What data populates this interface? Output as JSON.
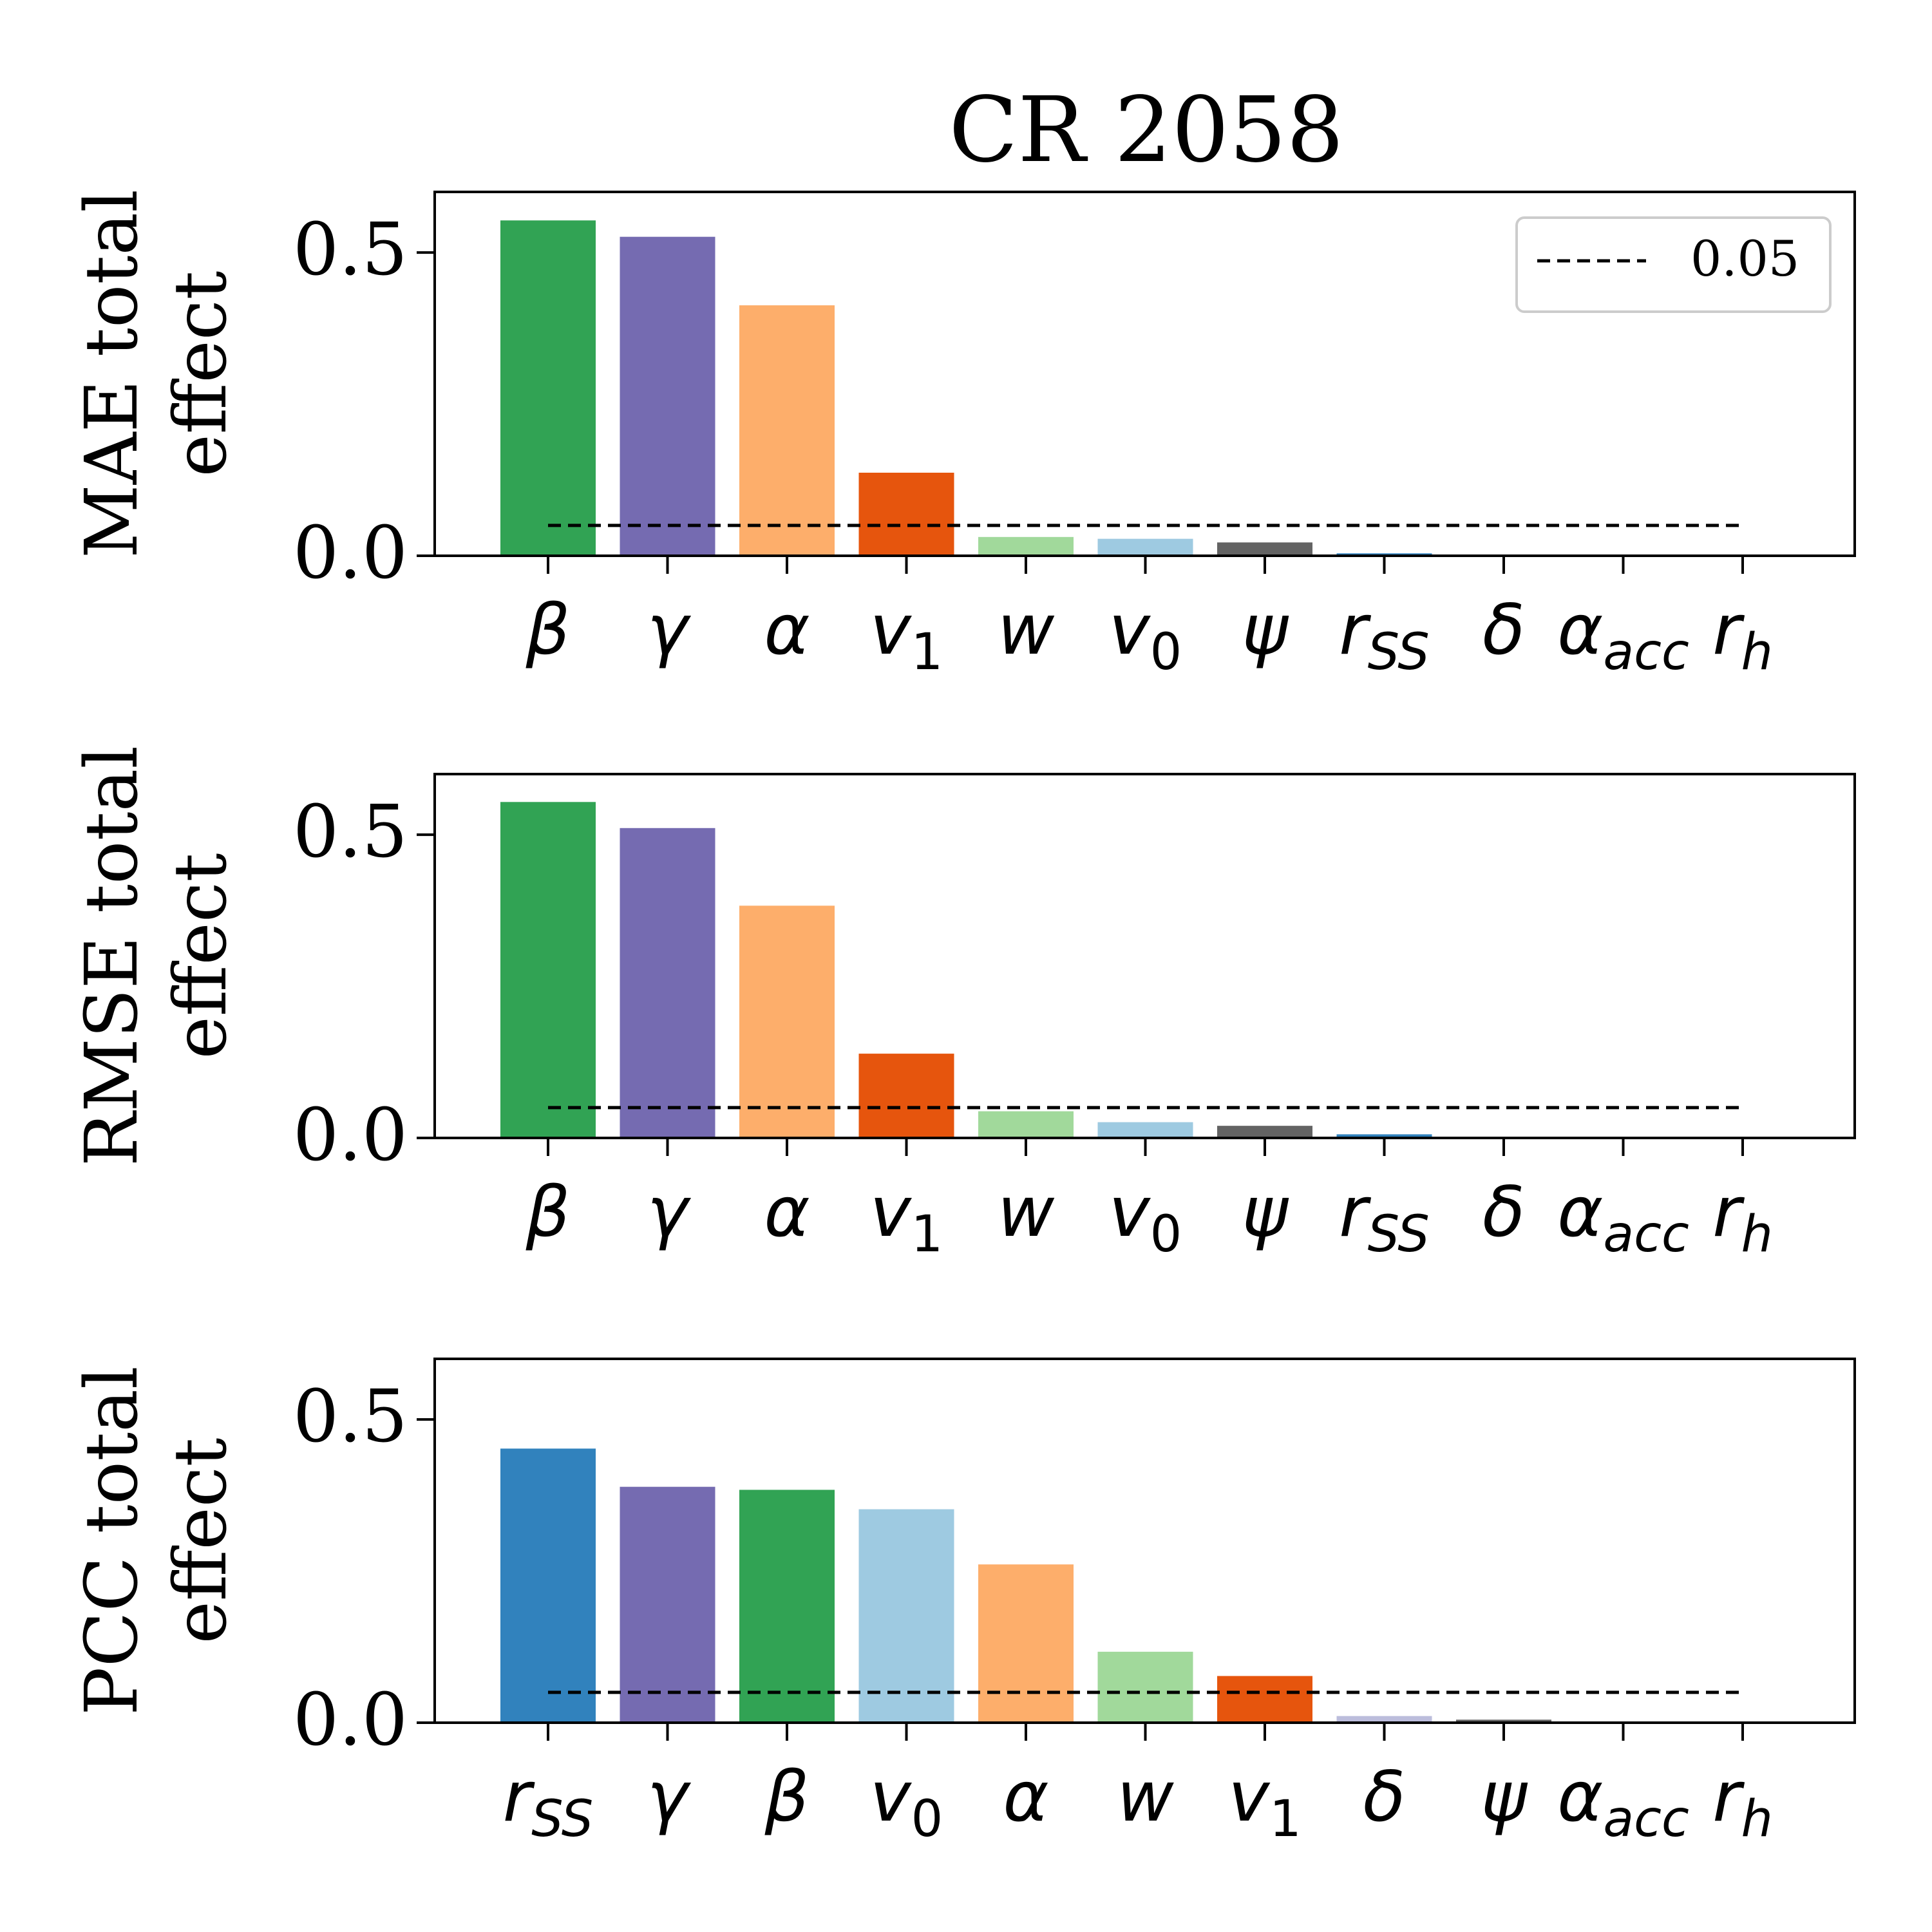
{
  "figure_title": "CR 2058",
  "reference": {
    "value": 0.05,
    "label": "0.05"
  },
  "chart_data": [
    {
      "type": "bar",
      "ylabel_line1": "MAE total",
      "ylabel_line2": "effect",
      "ylim": [
        0,
        0.6
      ],
      "yticks": [
        "0.0",
        "0.5"
      ],
      "legend_placement": "top-right",
      "categories": [
        {
          "base": "β"
        },
        {
          "base": "γ"
        },
        {
          "base": "α"
        },
        {
          "base": "v",
          "sub": "1"
        },
        {
          "base": "w"
        },
        {
          "base": "v",
          "sub": "0"
        },
        {
          "base": "ψ"
        },
        {
          "base": "r",
          "sub": "SS"
        },
        {
          "base": "δ"
        },
        {
          "base": "α",
          "sub": "acc"
        },
        {
          "base": "r",
          "sub": "h"
        }
      ],
      "values": [
        0.553,
        0.526,
        0.413,
        0.137,
        0.031,
        0.028,
        0.022,
        0.004,
        0.0,
        0.0,
        0.0
      ],
      "colors": [
        "#31a354",
        "#756bb1",
        "#fdae6b",
        "#e6550d",
        "#a1d99b",
        "#9ecae1",
        "#636363",
        "#3182bd",
        "#bcbddc",
        "#ffffff",
        "#ffffff"
      ]
    },
    {
      "type": "bar",
      "ylabel_line1": "RMSE total",
      "ylabel_line2": "effect",
      "ylim": [
        0,
        0.6
      ],
      "yticks": [
        "0.0",
        "0.5"
      ],
      "categories": [
        {
          "base": "β"
        },
        {
          "base": "γ"
        },
        {
          "base": "α"
        },
        {
          "base": "v",
          "sub": "1"
        },
        {
          "base": "w"
        },
        {
          "base": "v",
          "sub": "0"
        },
        {
          "base": "ψ"
        },
        {
          "base": "r",
          "sub": "SS"
        },
        {
          "base": "δ"
        },
        {
          "base": "α",
          "sub": "acc"
        },
        {
          "base": "r",
          "sub": "h"
        }
      ],
      "values": [
        0.554,
        0.511,
        0.383,
        0.139,
        0.044,
        0.026,
        0.02,
        0.006,
        0.0,
        0.0,
        0.0
      ],
      "colors": [
        "#31a354",
        "#756bb1",
        "#fdae6b",
        "#e6550d",
        "#a1d99b",
        "#9ecae1",
        "#636363",
        "#3182bd",
        "#bcbddc",
        "#ffffff",
        "#ffffff"
      ]
    },
    {
      "type": "bar",
      "ylabel_line1": "PCC total",
      "ylabel_line2": "effect",
      "ylim": [
        0,
        0.6
      ],
      "yticks": [
        "0.0",
        "0.5"
      ],
      "categories": [
        {
          "base": "r",
          "sub": "SS"
        },
        {
          "base": "γ"
        },
        {
          "base": "β"
        },
        {
          "base": "v",
          "sub": "0"
        },
        {
          "base": "α"
        },
        {
          "base": "w"
        },
        {
          "base": "v",
          "sub": "1"
        },
        {
          "base": "δ"
        },
        {
          "base": "ψ"
        },
        {
          "base": "α",
          "sub": "acc"
        },
        {
          "base": "r",
          "sub": "h"
        }
      ],
      "values": [
        0.452,
        0.389,
        0.384,
        0.352,
        0.261,
        0.117,
        0.077,
        0.011,
        0.005,
        0.0,
        0.0
      ],
      "colors": [
        "#3182bd",
        "#756bb1",
        "#31a354",
        "#9ecae1",
        "#fdae6b",
        "#a1d99b",
        "#e6550d",
        "#bcbddc",
        "#636363",
        "#ffffff",
        "#ffffff"
      ]
    }
  ]
}
